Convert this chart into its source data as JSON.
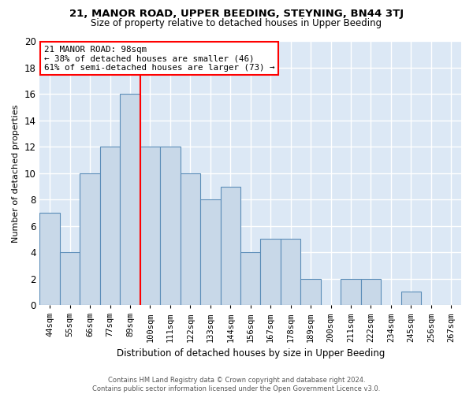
{
  "title1": "21, MANOR ROAD, UPPER BEEDING, STEYNING, BN44 3TJ",
  "title2": "Size of property relative to detached houses in Upper Beeding",
  "xlabel": "Distribution of detached houses by size in Upper Beeding",
  "ylabel": "Number of detached properties",
  "footer1": "Contains HM Land Registry data © Crown copyright and database right 2024.",
  "footer2": "Contains public sector information licensed under the Open Government Licence v3.0.",
  "bin_labels": [
    "44sqm",
    "55sqm",
    "66sqm",
    "77sqm",
    "89sqm",
    "100sqm",
    "111sqm",
    "122sqm",
    "133sqm",
    "144sqm",
    "156sqm",
    "167sqm",
    "178sqm",
    "189sqm",
    "200sqm",
    "211sqm",
    "222sqm",
    "234sqm",
    "245sqm",
    "256sqm",
    "267sqm"
  ],
  "bar_values": [
    7,
    4,
    10,
    12,
    16,
    12,
    12,
    10,
    8,
    9,
    4,
    5,
    5,
    2,
    0,
    2,
    2,
    0,
    1,
    0,
    0
  ],
  "bar_color": "#c8d8e8",
  "bar_edge_color": "#5b8db8",
  "annotation_line1": "21 MANOR ROAD: 98sqm",
  "annotation_line2": "← 38% of detached houses are smaller (46)",
  "annotation_line3": "61% of semi-detached houses are larger (73) →",
  "red_line_bin_index": 4.5,
  "annotation_box_color": "white",
  "annotation_box_edge_color": "red",
  "ylim": [
    0,
    20
  ],
  "yticks": [
    0,
    2,
    4,
    6,
    8,
    10,
    12,
    14,
    16,
    18,
    20
  ],
  "background_color": "#dce8f5",
  "grid_color": "white",
  "fig_width": 6.0,
  "fig_height": 5.0,
  "dpi": 100
}
